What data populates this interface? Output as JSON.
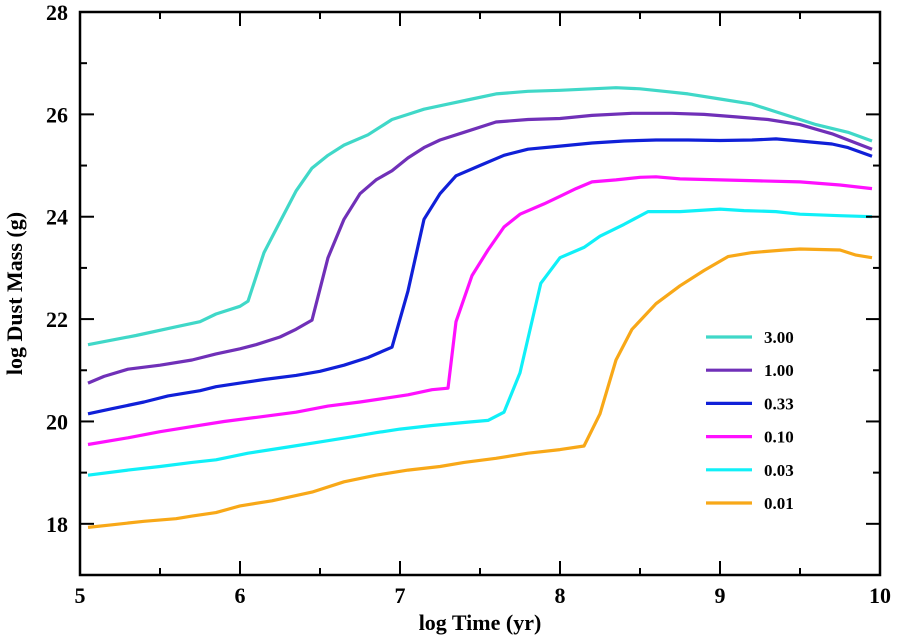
{
  "chart_data": {
    "type": "line",
    "title": "",
    "xlabel": "log Time (yr)",
    "ylabel": "log Dust Mass (g)",
    "xlim": [
      5,
      10
    ],
    "ylim": [
      17,
      28
    ],
    "xticks": [
      5,
      6,
      7,
      8,
      9,
      10
    ],
    "yticks": [
      18,
      20,
      22,
      24,
      26,
      28
    ],
    "legend_position": "right",
    "series": [
      {
        "name": "3.00",
        "color": "#40d8c8",
        "points": [
          [
            5.05,
            21.5
          ],
          [
            5.35,
            21.68
          ],
          [
            5.6,
            21.85
          ],
          [
            5.75,
            21.95
          ],
          [
            5.85,
            22.1
          ],
          [
            6.0,
            22.25
          ],
          [
            6.05,
            22.35
          ],
          [
            6.15,
            23.3
          ],
          [
            6.25,
            23.9
          ],
          [
            6.35,
            24.5
          ],
          [
            6.45,
            24.95
          ],
          [
            6.55,
            25.2
          ],
          [
            6.65,
            25.4
          ],
          [
            6.8,
            25.6
          ],
          [
            6.9,
            25.8
          ],
          [
            6.95,
            25.9
          ],
          [
            7.05,
            26.0
          ],
          [
            7.15,
            26.1
          ],
          [
            7.3,
            26.2
          ],
          [
            7.45,
            26.3
          ],
          [
            7.6,
            26.4
          ],
          [
            7.8,
            26.45
          ],
          [
            8.0,
            26.47
          ],
          [
            8.2,
            26.5
          ],
          [
            8.35,
            26.52
          ],
          [
            8.5,
            26.5
          ],
          [
            8.65,
            26.45
          ],
          [
            8.8,
            26.4
          ],
          [
            9.0,
            26.3
          ],
          [
            9.2,
            26.2
          ],
          [
            9.4,
            26.0
          ],
          [
            9.6,
            25.8
          ],
          [
            9.8,
            25.65
          ],
          [
            9.95,
            25.48
          ]
        ]
      },
      {
        "name": "1.00",
        "color": "#7030b8",
        "points": [
          [
            5.05,
            20.75
          ],
          [
            5.15,
            20.88
          ],
          [
            5.3,
            21.02
          ],
          [
            5.5,
            21.1
          ],
          [
            5.7,
            21.2
          ],
          [
            5.85,
            21.32
          ],
          [
            6.0,
            21.42
          ],
          [
            6.1,
            21.5
          ],
          [
            6.25,
            21.65
          ],
          [
            6.35,
            21.8
          ],
          [
            6.45,
            21.98
          ],
          [
            6.55,
            23.2
          ],
          [
            6.65,
            23.95
          ],
          [
            6.75,
            24.45
          ],
          [
            6.85,
            24.72
          ],
          [
            6.95,
            24.9
          ],
          [
            7.05,
            25.15
          ],
          [
            7.15,
            25.35
          ],
          [
            7.25,
            25.5
          ],
          [
            7.4,
            25.65
          ],
          [
            7.6,
            25.85
          ],
          [
            7.8,
            25.9
          ],
          [
            8.0,
            25.92
          ],
          [
            8.2,
            25.98
          ],
          [
            8.45,
            26.02
          ],
          [
            8.7,
            26.02
          ],
          [
            8.9,
            26.0
          ],
          [
            9.1,
            25.95
          ],
          [
            9.3,
            25.9
          ],
          [
            9.5,
            25.8
          ],
          [
            9.7,
            25.62
          ],
          [
            9.95,
            25.32
          ]
        ]
      },
      {
        "name": "0.33",
        "color": "#1020d8",
        "points": [
          [
            5.05,
            20.15
          ],
          [
            5.2,
            20.25
          ],
          [
            5.4,
            20.38
          ],
          [
            5.55,
            20.5
          ],
          [
            5.75,
            20.6
          ],
          [
            5.85,
            20.68
          ],
          [
            6.0,
            20.75
          ],
          [
            6.15,
            20.82
          ],
          [
            6.35,
            20.9
          ],
          [
            6.5,
            20.98
          ],
          [
            6.65,
            21.1
          ],
          [
            6.8,
            21.25
          ],
          [
            6.95,
            21.45
          ],
          [
            7.05,
            22.55
          ],
          [
            7.15,
            23.95
          ],
          [
            7.25,
            24.45
          ],
          [
            7.35,
            24.8
          ],
          [
            7.5,
            25.0
          ],
          [
            7.65,
            25.2
          ],
          [
            7.8,
            25.32
          ],
          [
            8.0,
            25.38
          ],
          [
            8.2,
            25.44
          ],
          [
            8.4,
            25.48
          ],
          [
            8.6,
            25.5
          ],
          [
            8.8,
            25.5
          ],
          [
            9.0,
            25.49
          ],
          [
            9.2,
            25.5
          ],
          [
            9.35,
            25.52
          ],
          [
            9.5,
            25.48
          ],
          [
            9.7,
            25.42
          ],
          [
            9.8,
            25.35
          ],
          [
            9.95,
            25.18
          ]
        ]
      },
      {
        "name": "0.10",
        "color": "#ff10ff",
        "points": [
          [
            5.05,
            19.55
          ],
          [
            5.3,
            19.68
          ],
          [
            5.5,
            19.8
          ],
          [
            5.7,
            19.9
          ],
          [
            5.9,
            20.0
          ],
          [
            6.1,
            20.08
          ],
          [
            6.35,
            20.18
          ],
          [
            6.55,
            20.3
          ],
          [
            6.75,
            20.38
          ],
          [
            6.9,
            20.45
          ],
          [
            7.05,
            20.52
          ],
          [
            7.2,
            20.62
          ],
          [
            7.3,
            20.65
          ],
          [
            7.35,
            21.95
          ],
          [
            7.45,
            22.85
          ],
          [
            7.55,
            23.35
          ],
          [
            7.65,
            23.8
          ],
          [
            7.75,
            24.05
          ],
          [
            7.9,
            24.25
          ],
          [
            8.0,
            24.4
          ],
          [
            8.1,
            24.55
          ],
          [
            8.2,
            24.68
          ],
          [
            8.35,
            24.72
          ],
          [
            8.5,
            24.77
          ],
          [
            8.6,
            24.78
          ],
          [
            8.75,
            24.74
          ],
          [
            9.0,
            24.72
          ],
          [
            9.25,
            24.7
          ],
          [
            9.5,
            24.68
          ],
          [
            9.75,
            24.62
          ],
          [
            9.95,
            24.55
          ]
        ]
      },
      {
        "name": "0.03",
        "color": "#10f0f8",
        "points": [
          [
            5.05,
            18.95
          ],
          [
            5.3,
            19.05
          ],
          [
            5.5,
            19.12
          ],
          [
            5.7,
            19.2
          ],
          [
            5.85,
            19.25
          ],
          [
            6.05,
            19.38
          ],
          [
            6.3,
            19.5
          ],
          [
            6.5,
            19.6
          ],
          [
            6.7,
            19.7
          ],
          [
            6.85,
            19.78
          ],
          [
            7.0,
            19.85
          ],
          [
            7.2,
            19.92
          ],
          [
            7.4,
            19.98
          ],
          [
            7.55,
            20.02
          ],
          [
            7.65,
            20.18
          ],
          [
            7.75,
            20.95
          ],
          [
            7.88,
            22.7
          ],
          [
            8.0,
            23.2
          ],
          [
            8.15,
            23.4
          ],
          [
            8.25,
            23.62
          ],
          [
            8.4,
            23.85
          ],
          [
            8.55,
            24.1
          ],
          [
            8.75,
            24.1
          ],
          [
            9.0,
            24.15
          ],
          [
            9.15,
            24.12
          ],
          [
            9.35,
            24.1
          ],
          [
            9.5,
            24.05
          ],
          [
            9.75,
            24.02
          ],
          [
            9.95,
            24.0
          ]
        ]
      },
      {
        "name": "0.01",
        "color": "#f8a818",
        "points": [
          [
            5.05,
            17.93
          ],
          [
            5.2,
            17.98
          ],
          [
            5.4,
            18.05
          ],
          [
            5.6,
            18.1
          ],
          [
            5.7,
            18.15
          ],
          [
            5.85,
            18.22
          ],
          [
            6.0,
            18.35
          ],
          [
            6.2,
            18.45
          ],
          [
            6.45,
            18.62
          ],
          [
            6.65,
            18.82
          ],
          [
            6.85,
            18.95
          ],
          [
            7.05,
            19.05
          ],
          [
            7.25,
            19.12
          ],
          [
            7.4,
            19.2
          ],
          [
            7.6,
            19.28
          ],
          [
            7.8,
            19.38
          ],
          [
            8.0,
            19.45
          ],
          [
            8.15,
            19.52
          ],
          [
            8.25,
            20.15
          ],
          [
            8.35,
            21.2
          ],
          [
            8.45,
            21.8
          ],
          [
            8.6,
            22.3
          ],
          [
            8.75,
            22.65
          ],
          [
            8.9,
            22.95
          ],
          [
            9.05,
            23.22
          ],
          [
            9.2,
            23.3
          ],
          [
            9.4,
            23.35
          ],
          [
            9.5,
            23.37
          ],
          [
            9.75,
            23.35
          ],
          [
            9.85,
            23.25
          ],
          [
            9.95,
            23.2
          ]
        ]
      }
    ]
  }
}
